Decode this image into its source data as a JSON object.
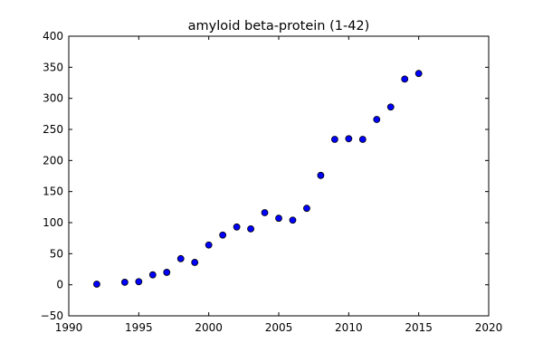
{
  "chart_data": {
    "type": "scatter",
    "title": "amyloid beta-protein (1-42)",
    "xlabel": "",
    "ylabel": "",
    "xlim": [
      1990,
      2020
    ],
    "ylim": [
      -50,
      400
    ],
    "xticks": [
      "1990",
      "1995",
      "2000",
      "2005",
      "2010",
      "2015",
      "2020"
    ],
    "yticks": [
      "−50",
      "0",
      "50",
      "100",
      "150",
      "200",
      "250",
      "300",
      "350",
      "400"
    ],
    "grid": false,
    "legend": "none",
    "marker_color": "#0000ff",
    "marker_edge": "#000000",
    "x": [
      1992,
      1994,
      1995,
      1996,
      1997,
      1998,
      1999,
      2000,
      2001,
      2002,
      2003,
      2004,
      2005,
      2006,
      2007,
      2008,
      2009,
      2010,
      2011,
      2012,
      2013,
      2014,
      2015
    ],
    "y": [
      1,
      4,
      5,
      16,
      20,
      42,
      36,
      64,
      80,
      93,
      90,
      116,
      107,
      104,
      123,
      176,
      234,
      235,
      234,
      266,
      286,
      331,
      340
    ]
  }
}
